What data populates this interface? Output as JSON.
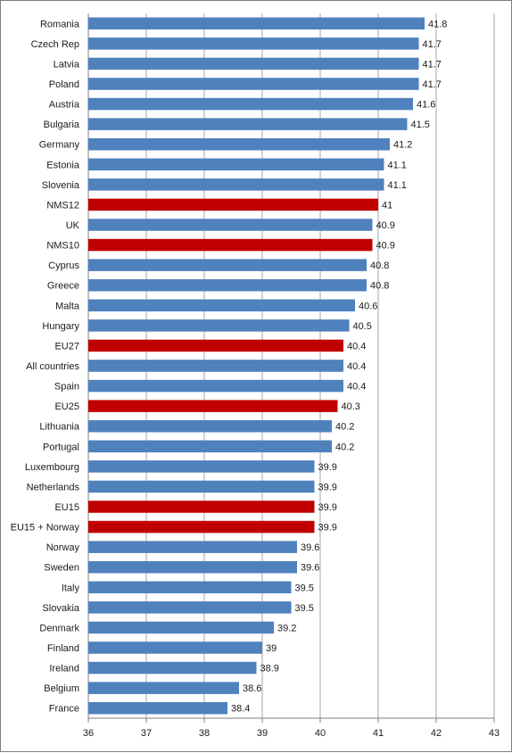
{
  "chart_data": {
    "type": "bar",
    "orientation": "horizontal",
    "categories": [
      "Romania",
      "Czech Rep",
      "Latvia",
      "Poland",
      "Austria",
      "Bulgaria",
      "Germany",
      "Estonia",
      "Slovenia",
      "NMS12",
      "UK",
      "NMS10",
      "Cyprus",
      "Greece",
      "Malta",
      "Hungary",
      "EU27",
      "All countries",
      "Spain",
      "EU25",
      "Lithuania",
      "Portugal",
      "Luxembourg",
      "Netherlands",
      "EU15",
      "EU15 + Norway",
      "Norway",
      "Sweden",
      "Italy",
      "Slovakia",
      "Denmark",
      "Finland",
      "Ireland",
      "Belgium",
      "France"
    ],
    "values": [
      41.8,
      41.7,
      41.7,
      41.7,
      41.6,
      41.5,
      41.2,
      41.1,
      41.1,
      41,
      40.9,
      40.9,
      40.8,
      40.8,
      40.6,
      40.5,
      40.4,
      40.4,
      40.4,
      40.3,
      40.2,
      40.2,
      39.9,
      39.9,
      39.9,
      39.9,
      39.6,
      39.6,
      39.5,
      39.5,
      39.2,
      39,
      38.9,
      38.6,
      38.4
    ],
    "value_labels": [
      "41.8",
      "41.7",
      "41.7",
      "41.7",
      "41.6",
      "41.5",
      "41.2",
      "41.1",
      "41.1",
      "41",
      "40.9",
      "40.9",
      "40.8",
      "40.8",
      "40.6",
      "40.5",
      "40.4",
      "40.4",
      "40.4",
      "40.3",
      "40.2",
      "40.2",
      "39.9",
      "39.9",
      "39.9",
      "39.9",
      "39.6",
      "39.6",
      "39.5",
      "39.5",
      "39.2",
      "39",
      "38.9",
      "38.6",
      "38.4"
    ],
    "highlighted": [
      "NMS12",
      "NMS10",
      "EU27",
      "EU25",
      "EU15",
      "EU15 + Norway"
    ],
    "colors": {
      "default": "#4f81bd",
      "highlight": "#c00000",
      "grid": "#a6a6a6",
      "axis": "#7f7f7f"
    },
    "xlim": [
      36,
      43
    ],
    "x_ticks": [
      "36",
      "37",
      "38",
      "39",
      "40",
      "41",
      "42",
      "43"
    ],
    "grid": "vertical",
    "title": "",
    "xlabel": "",
    "ylabel": ""
  }
}
